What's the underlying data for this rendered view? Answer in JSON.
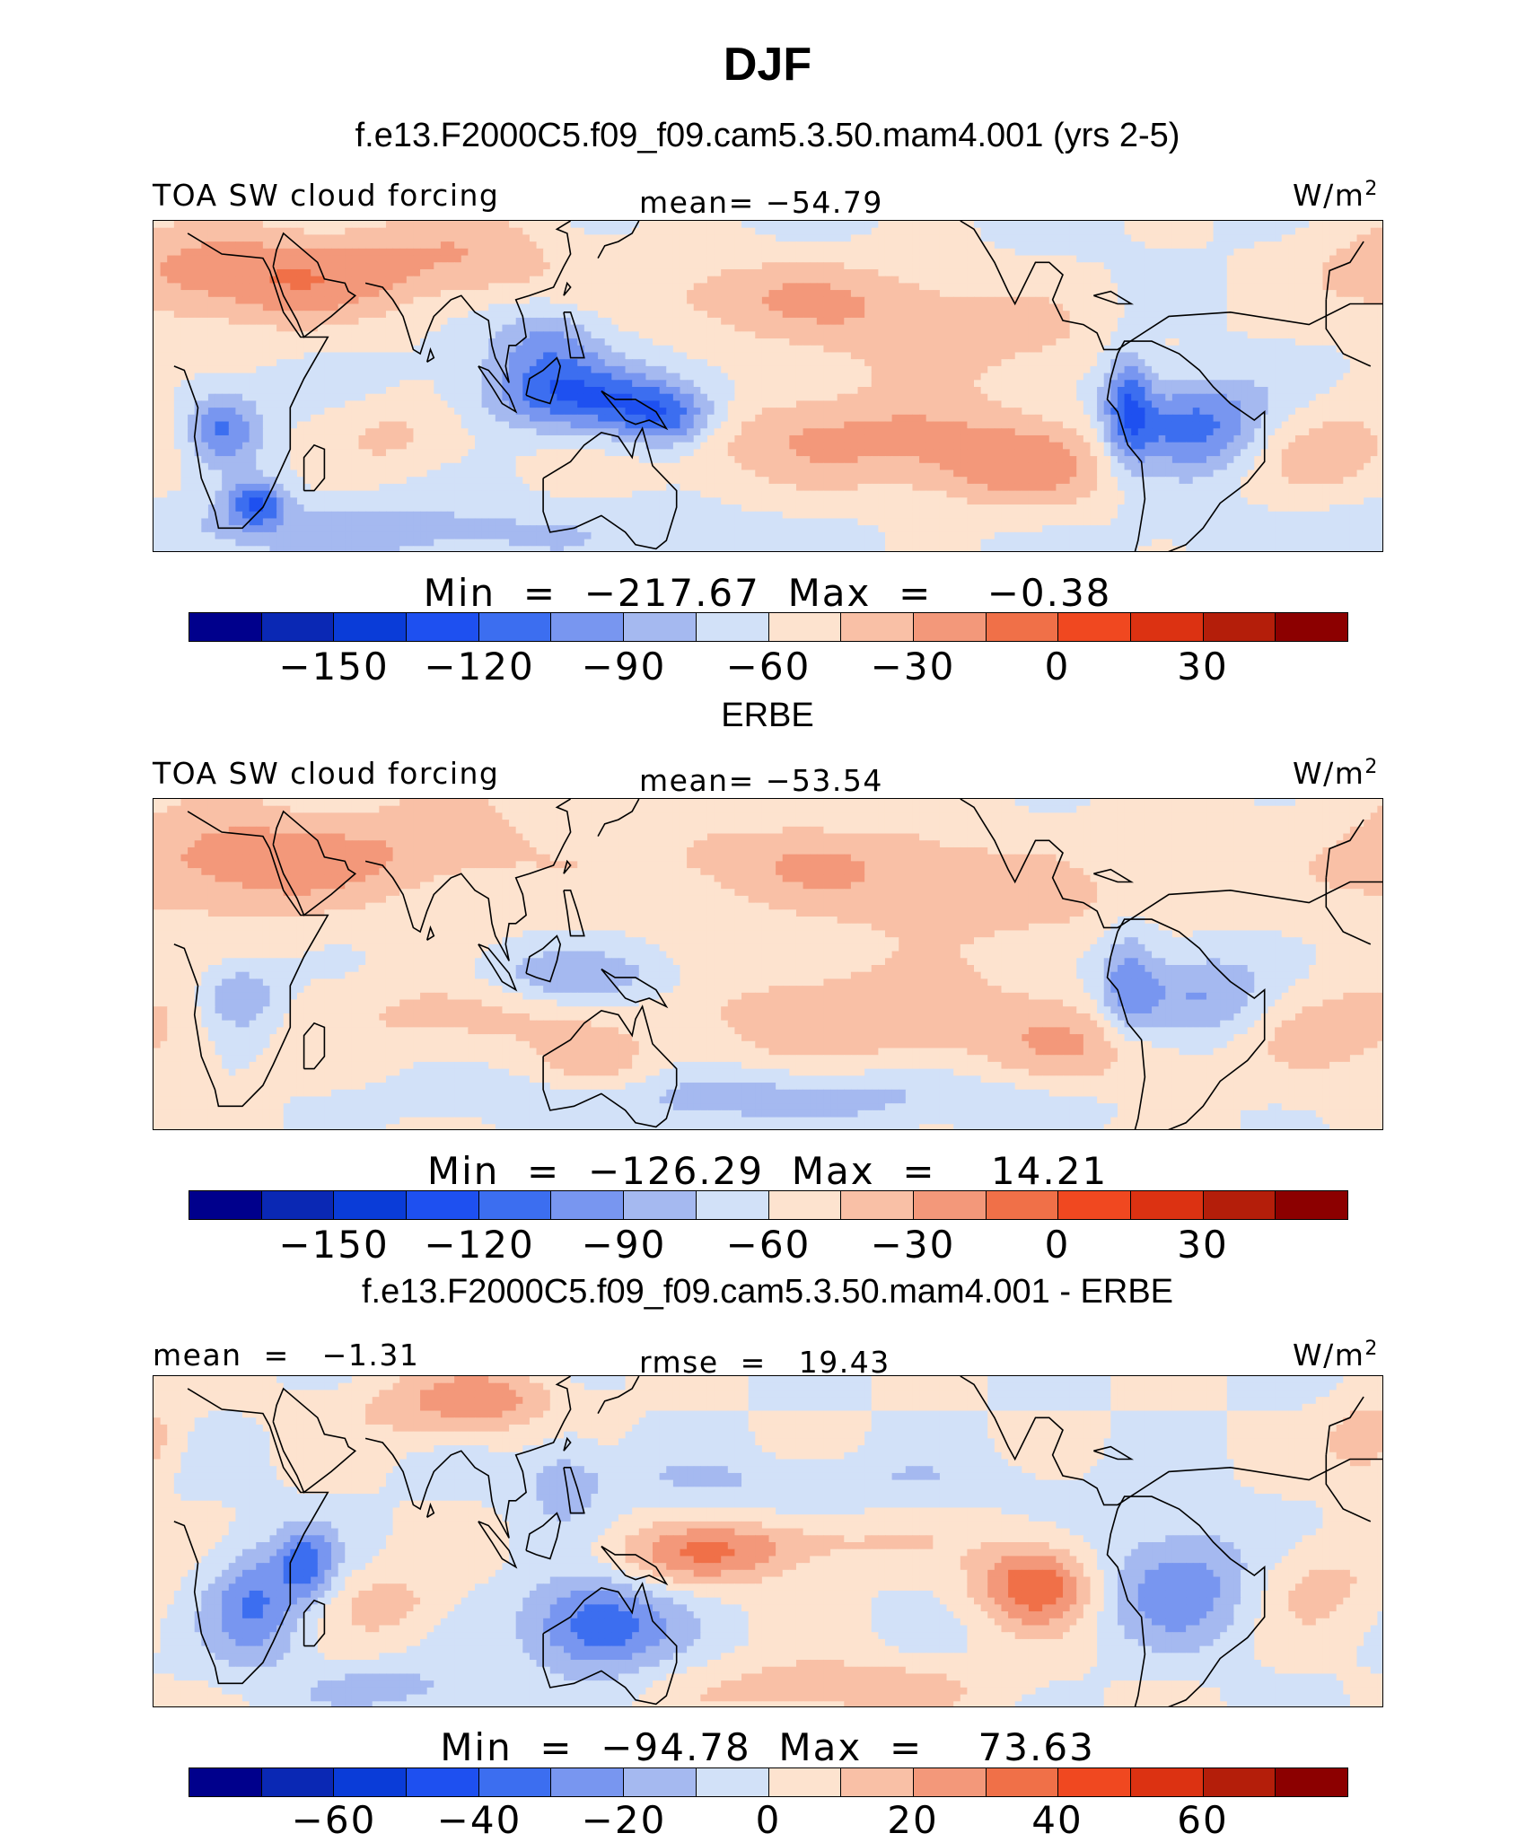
{
  "title": "DJF",
  "panels": [
    {
      "subtitle": "f.e13.F2000C5.f09_f09.cam5.3.50.mam4.001 (yrs 2-5)",
      "left_label": "TOA SW cloud forcing",
      "center_label": "mean= −54.79",
      "units": "W/m",
      "units_sup": "2",
      "minmax": "Min  =  −217.67  Max  =    −0.38",
      "tick_labels": [
        "−150",
        "−120",
        "−90",
        "−60",
        "−30",
        "0",
        "30"
      ],
      "map_field": "model"
    },
    {
      "subtitle": "ERBE",
      "left_label": "TOA SW cloud forcing",
      "center_label": "mean= −53.54",
      "units": "W/m",
      "units_sup": "2",
      "minmax": "Min  =  −126.29  Max  =    14.21",
      "tick_labels": [
        "−150",
        "−120",
        "−90",
        "−60",
        "−30",
        "0",
        "30"
      ],
      "map_field": "obs"
    },
    {
      "subtitle": "f.e13.F2000C5.f09_f09.cam5.3.50.mam4.001 - ERBE",
      "left_label": "mean  =   −1.31",
      "center_label": "rmse  =   19.43",
      "units": "W/m",
      "units_sup": "2",
      "minmax": "Min  =  −94.78  Max  =    73.63",
      "tick_labels": [
        "−60",
        "−40",
        "−20",
        "0",
        "20",
        "40",
        "60"
      ],
      "map_field": "diff"
    }
  ],
  "colorbar_colors": [
    "#00008c",
    "#0a28b4",
    "#0a3cd8",
    "#1e50f0",
    "#3c6ef0",
    "#7896f0",
    "#a5b9f0",
    "#d2e1f8",
    "#fde3cf",
    "#f9c0a6",
    "#f3987a",
    "#f07048",
    "#f04820",
    "#dc3212",
    "#b41e0a",
    "#8c0000"
  ]
}
